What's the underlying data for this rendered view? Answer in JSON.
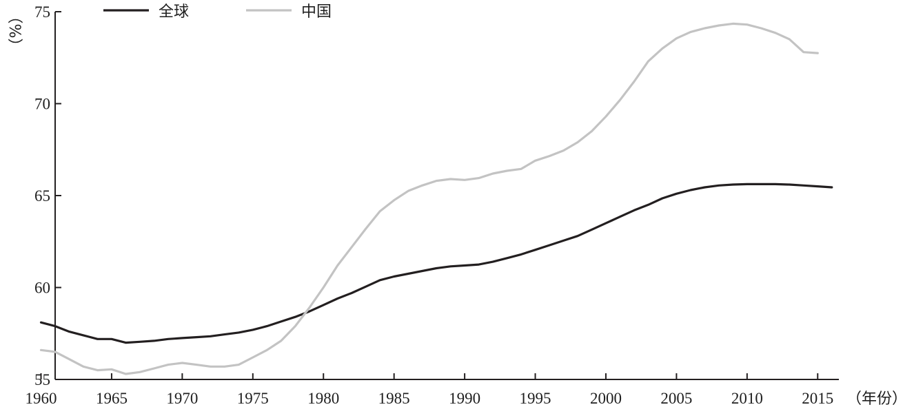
{
  "chart_data": {
    "type": "line",
    "title": "",
    "ylabel": "（%）",
    "xlabel": "（年份）",
    "xlim": [
      1960,
      2017
    ],
    "ylim": [
      55,
      75
    ],
    "xticks": [
      1960,
      1965,
      1970,
      1975,
      1980,
      1985,
      1990,
      1995,
      2000,
      2005,
      2010,
      2015
    ],
    "yticks": [
      55,
      60,
      65,
      70,
      75
    ],
    "grid": false,
    "legend_position": "top-left",
    "series": [
      {
        "name": "全球",
        "color": "#231f20",
        "points": [
          [
            1960,
            58.1
          ],
          [
            1961,
            57.9
          ],
          [
            1962,
            57.6
          ],
          [
            1963,
            57.4
          ],
          [
            1964,
            57.2
          ],
          [
            1965,
            57.2
          ],
          [
            1966,
            57.0
          ],
          [
            1967,
            57.05
          ],
          [
            1968,
            57.1
          ],
          [
            1969,
            57.2
          ],
          [
            1970,
            57.25
          ],
          [
            1971,
            57.3
          ],
          [
            1972,
            57.35
          ],
          [
            1973,
            57.45
          ],
          [
            1974,
            57.55
          ],
          [
            1975,
            57.7
          ],
          [
            1976,
            57.9
          ],
          [
            1977,
            58.15
          ],
          [
            1978,
            58.4
          ],
          [
            1979,
            58.7
          ],
          [
            1980,
            59.05
          ],
          [
            1981,
            59.4
          ],
          [
            1982,
            59.7
          ],
          [
            1983,
            60.05
          ],
          [
            1984,
            60.4
          ],
          [
            1985,
            60.6
          ],
          [
            1986,
            60.75
          ],
          [
            1987,
            60.9
          ],
          [
            1988,
            61.05
          ],
          [
            1989,
            61.15
          ],
          [
            1990,
            61.2
          ],
          [
            1991,
            61.25
          ],
          [
            1992,
            61.4
          ],
          [
            1993,
            61.6
          ],
          [
            1994,
            61.8
          ],
          [
            1995,
            62.05
          ],
          [
            1996,
            62.3
          ],
          [
            1997,
            62.55
          ],
          [
            1998,
            62.8
          ],
          [
            1999,
            63.15
          ],
          [
            2000,
            63.5
          ],
          [
            2001,
            63.85
          ],
          [
            2002,
            64.2
          ],
          [
            2003,
            64.5
          ],
          [
            2004,
            64.85
          ],
          [
            2005,
            65.1
          ],
          [
            2006,
            65.3
          ],
          [
            2007,
            65.45
          ],
          [
            2008,
            65.55
          ],
          [
            2009,
            65.6
          ],
          [
            2010,
            65.62
          ],
          [
            2011,
            65.62
          ],
          [
            2012,
            65.62
          ],
          [
            2013,
            65.6
          ],
          [
            2014,
            65.55
          ],
          [
            2015,
            65.5
          ],
          [
            2016,
            65.45
          ]
        ]
      },
      {
        "name": "中国",
        "color": "#c3c3c3",
        "points": [
          [
            1960,
            56.6
          ],
          [
            1961,
            56.5
          ],
          [
            1962,
            56.1
          ],
          [
            1963,
            55.7
          ],
          [
            1964,
            55.5
          ],
          [
            1965,
            55.55
          ],
          [
            1966,
            55.3
          ],
          [
            1967,
            55.4
          ],
          [
            1968,
            55.6
          ],
          [
            1969,
            55.8
          ],
          [
            1970,
            55.9
          ],
          [
            1971,
            55.8
          ],
          [
            1972,
            55.7
          ],
          [
            1973,
            55.7
          ],
          [
            1974,
            55.8
          ],
          [
            1975,
            56.2
          ],
          [
            1976,
            56.6
          ],
          [
            1977,
            57.1
          ],
          [
            1978,
            57.9
          ],
          [
            1979,
            58.9
          ],
          [
            1980,
            60.0
          ],
          [
            1981,
            61.2
          ],
          [
            1982,
            62.2
          ],
          [
            1983,
            63.2
          ],
          [
            1984,
            64.15
          ],
          [
            1985,
            64.75
          ],
          [
            1986,
            65.25
          ],
          [
            1987,
            65.55
          ],
          [
            1988,
            65.8
          ],
          [
            1989,
            65.9
          ],
          [
            1990,
            65.85
          ],
          [
            1991,
            65.95
          ],
          [
            1992,
            66.2
          ],
          [
            1993,
            66.35
          ],
          [
            1994,
            66.45
          ],
          [
            1995,
            66.9
          ],
          [
            1996,
            67.15
          ],
          [
            1997,
            67.45
          ],
          [
            1998,
            67.9
          ],
          [
            1999,
            68.5
          ],
          [
            2000,
            69.3
          ],
          [
            2001,
            70.2
          ],
          [
            2002,
            71.2
          ],
          [
            2003,
            72.3
          ],
          [
            2004,
            73.0
          ],
          [
            2005,
            73.55
          ],
          [
            2006,
            73.9
          ],
          [
            2007,
            74.1
          ],
          [
            2008,
            74.25
          ],
          [
            2009,
            74.35
          ],
          [
            2010,
            74.3
          ],
          [
            2011,
            74.1
          ],
          [
            2012,
            73.85
          ],
          [
            2013,
            73.5
          ],
          [
            2014,
            72.8
          ],
          [
            2015,
            72.75
          ]
        ]
      }
    ]
  }
}
